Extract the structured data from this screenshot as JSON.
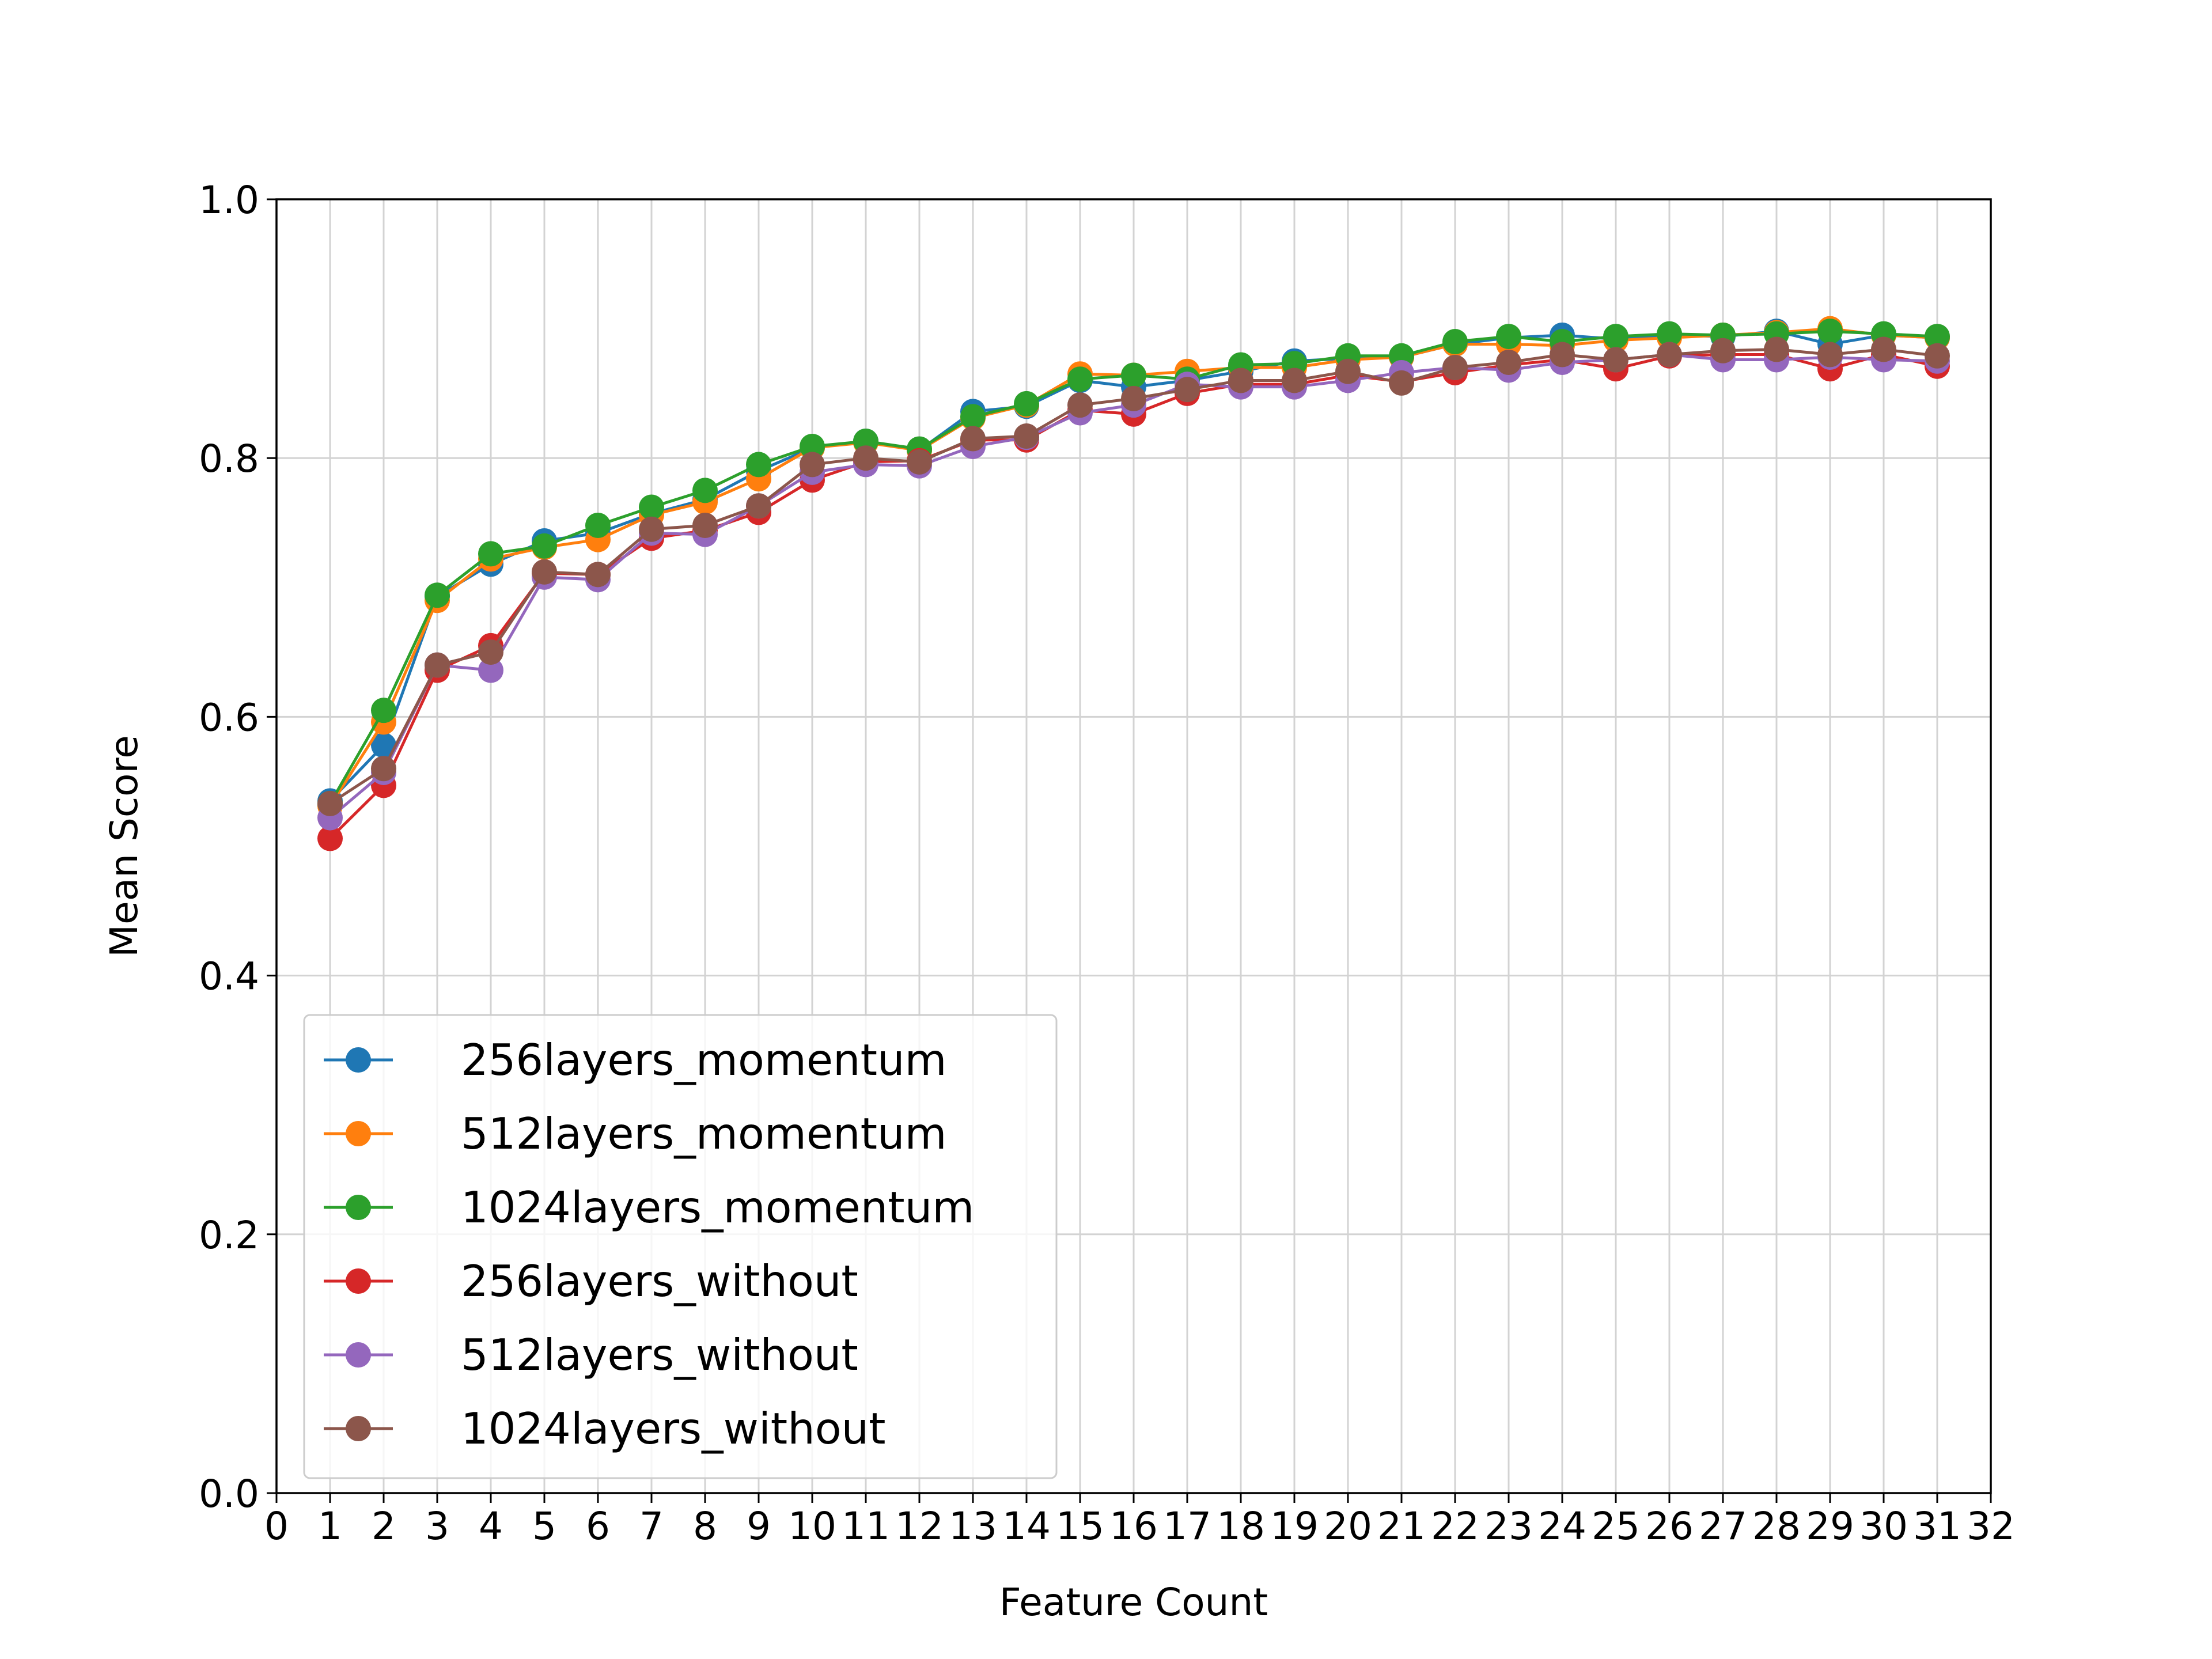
{
  "chart_data": {
    "type": "line",
    "title": "",
    "xlabel": "Feature Count",
    "ylabel": "Mean Score",
    "xlim": [
      0,
      32
    ],
    "ylim": [
      0,
      1.0
    ],
    "x_ticks": [
      0,
      1,
      2,
      3,
      4,
      5,
      6,
      7,
      8,
      9,
      10,
      11,
      12,
      13,
      14,
      15,
      16,
      17,
      18,
      19,
      20,
      21,
      22,
      23,
      24,
      25,
      26,
      27,
      28,
      29,
      30,
      31,
      32
    ],
    "y_ticks": [
      0.0,
      0.2,
      0.4,
      0.6,
      0.8,
      1.0
    ],
    "y_tick_labels": [
      "0.0",
      "0.2",
      "0.4",
      "0.6",
      "0.8",
      "1.0"
    ],
    "grid": true,
    "legend_position": "lower-left",
    "x": [
      1,
      2,
      3,
      4,
      5,
      6,
      7,
      8,
      9,
      10,
      11,
      12,
      13,
      14,
      15,
      16,
      17,
      18,
      19,
      20,
      21,
      22,
      23,
      24,
      25,
      26,
      27,
      28,
      29,
      30,
      31
    ],
    "series": [
      {
        "name": "256layers_momentum",
        "color": "#1f77b4",
        "values": [
          0.535,
          0.578,
          0.693,
          0.718,
          0.736,
          0.742,
          0.757,
          0.768,
          0.79,
          0.808,
          0.813,
          0.806,
          0.836,
          0.84,
          0.86,
          0.855,
          0.86,
          0.867,
          0.875,
          0.877,
          0.878,
          0.888,
          0.893,
          0.895,
          0.892,
          0.895,
          0.894,
          0.898,
          0.888,
          0.895,
          0.893
        ]
      },
      {
        "name": "512layers_momentum",
        "color": "#ff7f0e",
        "values": [
          0.531,
          0.596,
          0.69,
          0.722,
          0.731,
          0.737,
          0.756,
          0.766,
          0.784,
          0.808,
          0.812,
          0.806,
          0.831,
          0.841,
          0.865,
          0.864,
          0.867,
          0.87,
          0.87,
          0.876,
          0.878,
          0.888,
          0.888,
          0.887,
          0.891,
          0.893,
          0.895,
          0.897,
          0.9,
          0.895,
          0.893
        ]
      },
      {
        "name": "1024layers_momentum",
        "color": "#2ca02c",
        "values": [
          0.533,
          0.605,
          0.694,
          0.726,
          0.732,
          0.748,
          0.762,
          0.775,
          0.795,
          0.809,
          0.813,
          0.807,
          0.832,
          0.842,
          0.861,
          0.864,
          0.861,
          0.872,
          0.873,
          0.879,
          0.879,
          0.89,
          0.894,
          0.89,
          0.894,
          0.896,
          0.895,
          0.896,
          0.898,
          0.896,
          0.894
        ]
      },
      {
        "name": "256layers_without",
        "color": "#d62728",
        "values": [
          0.506,
          0.547,
          0.636,
          0.655,
          0.711,
          0.71,
          0.738,
          0.744,
          0.758,
          0.783,
          0.797,
          0.798,
          0.814,
          0.814,
          0.837,
          0.834,
          0.85,
          0.857,
          0.857,
          0.864,
          0.859,
          0.866,
          0.872,
          0.876,
          0.869,
          0.879,
          0.88,
          0.88,
          0.869,
          0.88,
          0.871
        ]
      },
      {
        "name": "512layers_without",
        "color": "#9467bd",
        "values": [
          0.522,
          0.557,
          0.64,
          0.636,
          0.708,
          0.706,
          0.742,
          0.741,
          0.763,
          0.789,
          0.795,
          0.794,
          0.809,
          0.816,
          0.835,
          0.841,
          0.857,
          0.855,
          0.855,
          0.86,
          0.866,
          0.87,
          0.868,
          0.874,
          0.876,
          0.88,
          0.876,
          0.876,
          0.878,
          0.876,
          0.875
        ]
      },
      {
        "name": "1024layers_without",
        "color": "#8c564b",
        "values": [
          0.533,
          0.56,
          0.64,
          0.65,
          0.712,
          0.71,
          0.745,
          0.748,
          0.763,
          0.795,
          0.8,
          0.797,
          0.815,
          0.817,
          0.841,
          0.846,
          0.853,
          0.86,
          0.86,
          0.867,
          0.858,
          0.87,
          0.874,
          0.88,
          0.876,
          0.88,
          0.883,
          0.884,
          0.88,
          0.884,
          0.879
        ]
      }
    ]
  }
}
